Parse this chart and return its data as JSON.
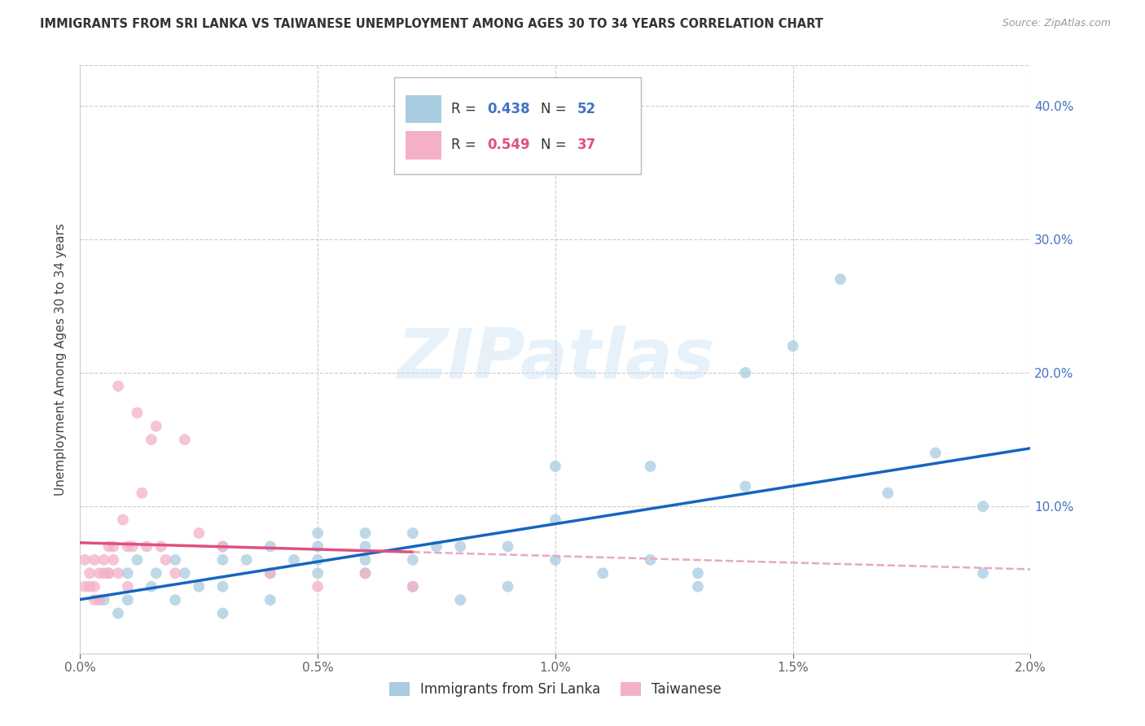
{
  "title": "IMMIGRANTS FROM SRI LANKA VS TAIWANESE UNEMPLOYMENT AMONG AGES 30 TO 34 YEARS CORRELATION CHART",
  "source": "Source: ZipAtlas.com",
  "ylabel": "Unemployment Among Ages 30 to 34 years",
  "label_blue": "Immigrants from Sri Lanka",
  "label_pink": "Taiwanese",
  "R_blue": 0.438,
  "N_blue": 52,
  "R_pink": 0.549,
  "N_pink": 37,
  "xlim": [
    0.0,
    0.02
  ],
  "ylim": [
    -0.01,
    0.43
  ],
  "xticks": [
    0.0,
    0.005,
    0.01,
    0.015,
    0.02
  ],
  "xtick_labels": [
    "0.0%",
    "0.5%",
    "1.0%",
    "1.5%",
    "2.0%"
  ],
  "yticks": [
    0.0,
    0.1,
    0.2,
    0.3,
    0.4
  ],
  "ytick_labels": [
    "",
    "10.0%",
    "20.0%",
    "30.0%",
    "40.0%"
  ],
  "color_blue": "#a8cce0",
  "color_pink": "#f4b0c8",
  "color_blue_line": "#1565c0",
  "color_pink_line": "#e05080",
  "color_pink_dash": "#e8a8c0",
  "watermark": "ZIPatlas",
  "blue_x": [
    0.0005,
    0.0008,
    0.001,
    0.001,
    0.0012,
    0.0015,
    0.0016,
    0.002,
    0.002,
    0.0022,
    0.0025,
    0.003,
    0.003,
    0.003,
    0.003,
    0.0035,
    0.004,
    0.004,
    0.004,
    0.0045,
    0.005,
    0.005,
    0.005,
    0.005,
    0.006,
    0.006,
    0.006,
    0.006,
    0.007,
    0.007,
    0.007,
    0.0075,
    0.008,
    0.008,
    0.009,
    0.009,
    0.01,
    0.01,
    0.01,
    0.011,
    0.012,
    0.012,
    0.013,
    0.013,
    0.014,
    0.014,
    0.015,
    0.016,
    0.017,
    0.018,
    0.019,
    0.019
  ],
  "blue_y": [
    0.03,
    0.02,
    0.05,
    0.03,
    0.06,
    0.04,
    0.05,
    0.06,
    0.03,
    0.05,
    0.04,
    0.07,
    0.06,
    0.04,
    0.02,
    0.06,
    0.07,
    0.05,
    0.03,
    0.06,
    0.07,
    0.06,
    0.05,
    0.08,
    0.07,
    0.06,
    0.08,
    0.05,
    0.08,
    0.06,
    0.04,
    0.07,
    0.07,
    0.03,
    0.07,
    0.04,
    0.09,
    0.13,
    0.06,
    0.05,
    0.13,
    0.06,
    0.05,
    0.04,
    0.115,
    0.2,
    0.22,
    0.27,
    0.11,
    0.14,
    0.1,
    0.05
  ],
  "pink_x": [
    0.0001,
    0.0001,
    0.0002,
    0.0002,
    0.0003,
    0.0003,
    0.0003,
    0.0004,
    0.0004,
    0.0005,
    0.0005,
    0.0006,
    0.0006,
    0.0006,
    0.0007,
    0.0007,
    0.0008,
    0.0008,
    0.0009,
    0.001,
    0.001,
    0.0011,
    0.0012,
    0.0013,
    0.0014,
    0.0015,
    0.0016,
    0.0017,
    0.0018,
    0.002,
    0.0022,
    0.0025,
    0.003,
    0.004,
    0.005,
    0.006,
    0.007
  ],
  "pink_y": [
    0.04,
    0.06,
    0.05,
    0.04,
    0.06,
    0.04,
    0.03,
    0.05,
    0.03,
    0.05,
    0.06,
    0.05,
    0.07,
    0.05,
    0.07,
    0.06,
    0.19,
    0.05,
    0.09,
    0.07,
    0.04,
    0.07,
    0.17,
    0.11,
    0.07,
    0.15,
    0.16,
    0.07,
    0.06,
    0.05,
    0.15,
    0.08,
    0.07,
    0.05,
    0.04,
    0.05,
    0.04
  ],
  "background_color": "#ffffff",
  "grid_color": "#cccccc"
}
